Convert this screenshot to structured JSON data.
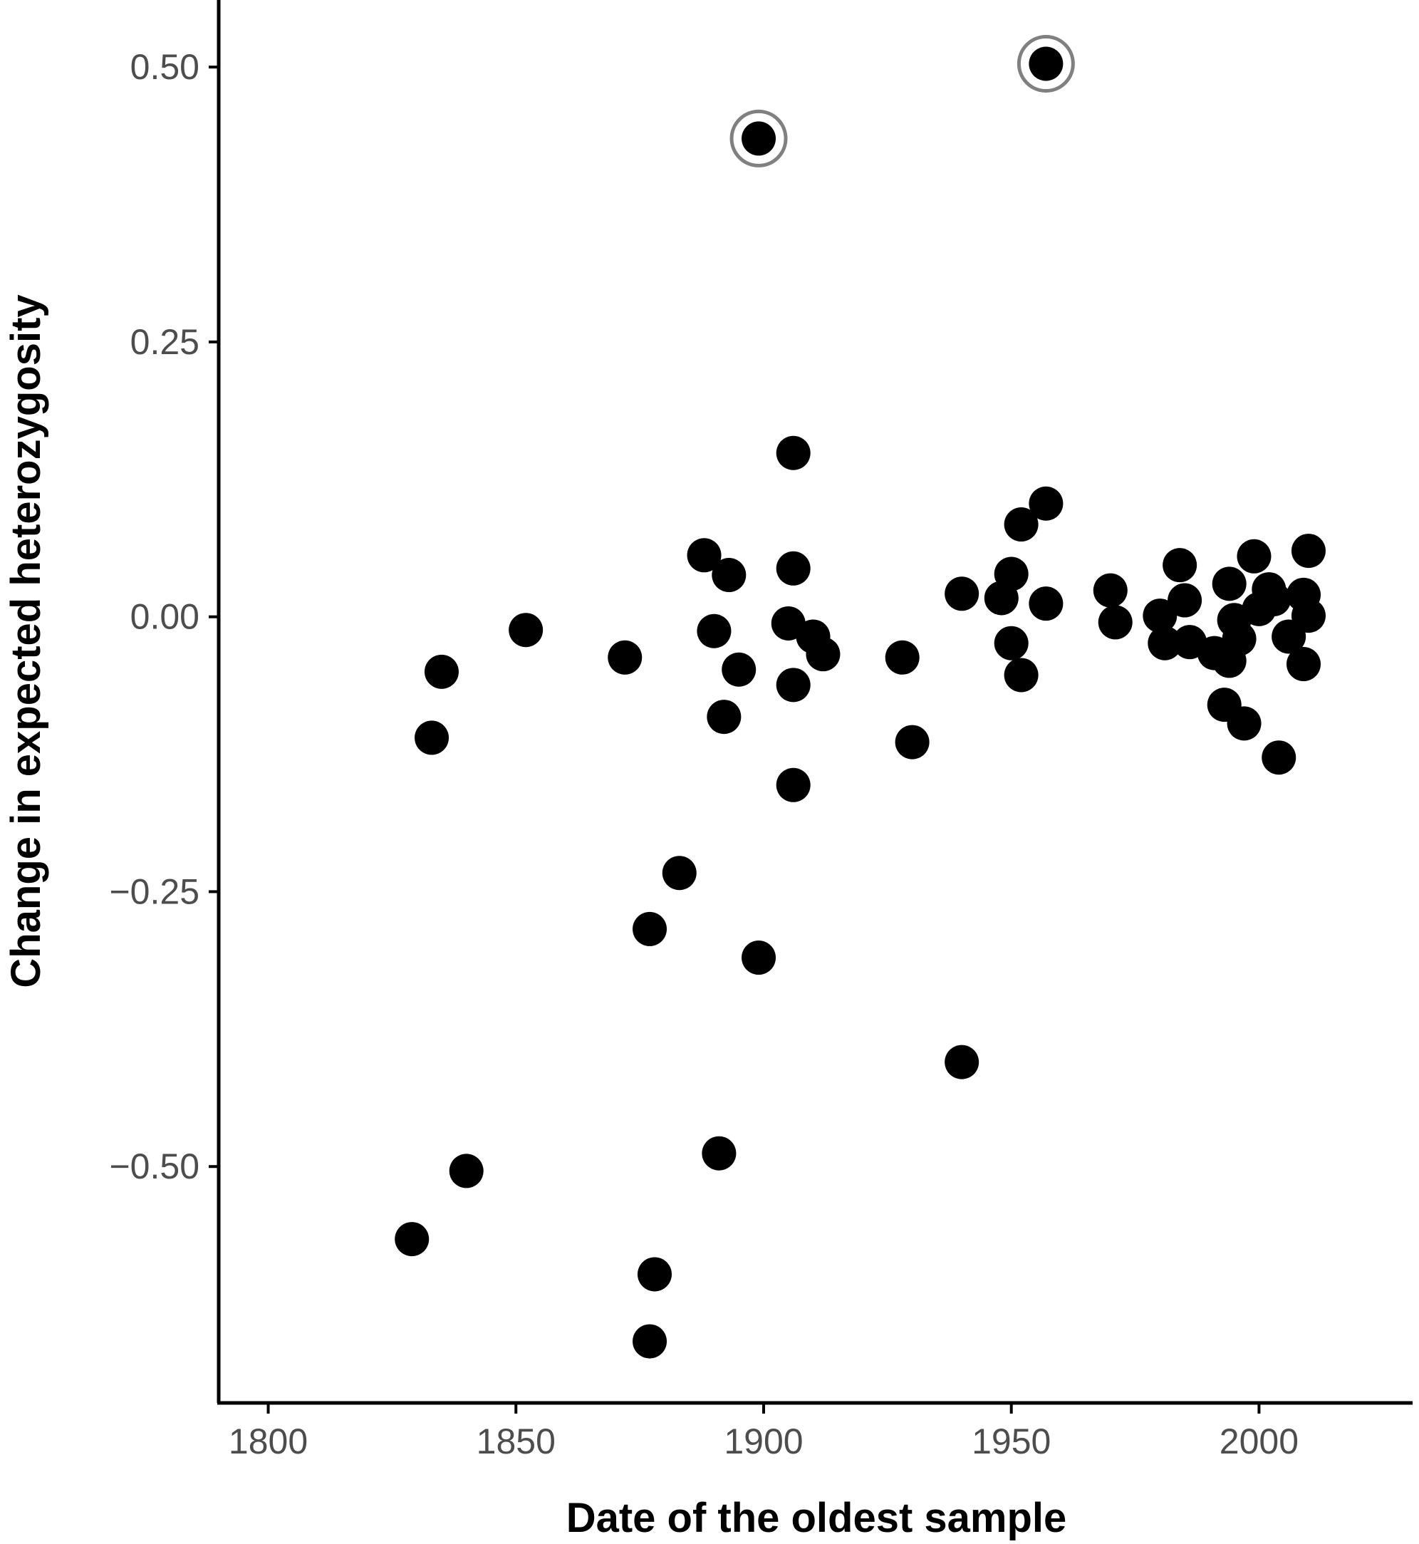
{
  "chart_data": {
    "type": "scatter",
    "xlabel": "Date of the oldest sample",
    "ylabel": "Change in expected heterozygosity",
    "xlim": [
      1790,
      2031
    ],
    "ylim": [
      -0.715,
      0.561
    ],
    "x_ticks": [
      {
        "value": 1800,
        "label": "1800"
      },
      {
        "value": 1850,
        "label": "1850"
      },
      {
        "value": 1900,
        "label": "1900"
      },
      {
        "value": 1950,
        "label": "1950"
      },
      {
        "value": 2000,
        "label": "2000"
      }
    ],
    "y_ticks": [
      {
        "value": 0.5,
        "label": "0.50"
      },
      {
        "value": 0.25,
        "label": "0.25"
      },
      {
        "value": 0.0,
        "label": "0.00"
      },
      {
        "value": -0.25,
        "label": "−0.25"
      },
      {
        "value": -0.5,
        "label": "−0.50"
      }
    ],
    "grid": false,
    "legend": "none",
    "colors": {
      "point": "#000000",
      "highlight_ring": "#808080",
      "axis": "#000000",
      "tick_label": "#4d4d4d"
    },
    "points": [
      {
        "x": 1899,
        "y": 0.435,
        "highlight": true
      },
      {
        "x": 1957,
        "y": 0.503,
        "highlight": true
      },
      {
        "x": 1906,
        "y": 0.149
      },
      {
        "x": 1957,
        "y": 0.103
      },
      {
        "x": 1952,
        "y": 0.084
      },
      {
        "x": 1888,
        "y": 0.056
      },
      {
        "x": 1893,
        "y": 0.038
      },
      {
        "x": 1906,
        "y": 0.044
      },
      {
        "x": 1950,
        "y": 0.039
      },
      {
        "x": 1948,
        "y": 0.017
      },
      {
        "x": 1957,
        "y": 0.012
      },
      {
        "x": 1940,
        "y": 0.021
      },
      {
        "x": 1970,
        "y": 0.024
      },
      {
        "x": 1971,
        "y": -0.005
      },
      {
        "x": 1852,
        "y": -0.012
      },
      {
        "x": 1872,
        "y": -0.037
      },
      {
        "x": 1890,
        "y": -0.013
      },
      {
        "x": 1905,
        "y": -0.006
      },
      {
        "x": 1910,
        "y": -0.018
      },
      {
        "x": 1912,
        "y": -0.034
      },
      {
        "x": 1895,
        "y": -0.048
      },
      {
        "x": 1906,
        "y": -0.062
      },
      {
        "x": 1892,
        "y": -0.091
      },
      {
        "x": 1928,
        "y": -0.037
      },
      {
        "x": 1950,
        "y": -0.024
      },
      {
        "x": 1952,
        "y": -0.053
      },
      {
        "x": 1835,
        "y": -0.05
      },
      {
        "x": 1833,
        "y": -0.11
      },
      {
        "x": 1930,
        "y": -0.114
      },
      {
        "x": 1906,
        "y": -0.153
      },
      {
        "x": 1883,
        "y": -0.233
      },
      {
        "x": 1877,
        "y": -0.284
      },
      {
        "x": 1899,
        "y": -0.31
      },
      {
        "x": 1940,
        "y": -0.405
      },
      {
        "x": 1891,
        "y": -0.488
      },
      {
        "x": 1840,
        "y": -0.504
      },
      {
        "x": 1829,
        "y": -0.566
      },
      {
        "x": 1878,
        "y": -0.598
      },
      {
        "x": 1877,
        "y": -0.659
      },
      {
        "x": 1980,
        "y": 0.001
      },
      {
        "x": 1981,
        "y": -0.024
      },
      {
        "x": 1984,
        "y": 0.047
      },
      {
        "x": 1985,
        "y": 0.015
      },
      {
        "x": 1986,
        "y": -0.023
      },
      {
        "x": 1991,
        "y": -0.033
      },
      {
        "x": 1993,
        "y": -0.08
      },
      {
        "x": 1994,
        "y": -0.04
      },
      {
        "x": 1994,
        "y": 0.03
      },
      {
        "x": 1995,
        "y": -0.003
      },
      {
        "x": 1996,
        "y": -0.02
      },
      {
        "x": 1997,
        "y": -0.097
      },
      {
        "x": 1999,
        "y": 0.055
      },
      {
        "x": 2000,
        "y": 0.007
      },
      {
        "x": 2002,
        "y": 0.025
      },
      {
        "x": 2003,
        "y": 0.016
      },
      {
        "x": 2004,
        "y": -0.128
      },
      {
        "x": 2006,
        "y": -0.018
      },
      {
        "x": 2009,
        "y": 0.02
      },
      {
        "x": 2009,
        "y": -0.043
      },
      {
        "x": 2010,
        "y": 0.06
      },
      {
        "x": 2010,
        "y": 0.001
      }
    ]
  }
}
